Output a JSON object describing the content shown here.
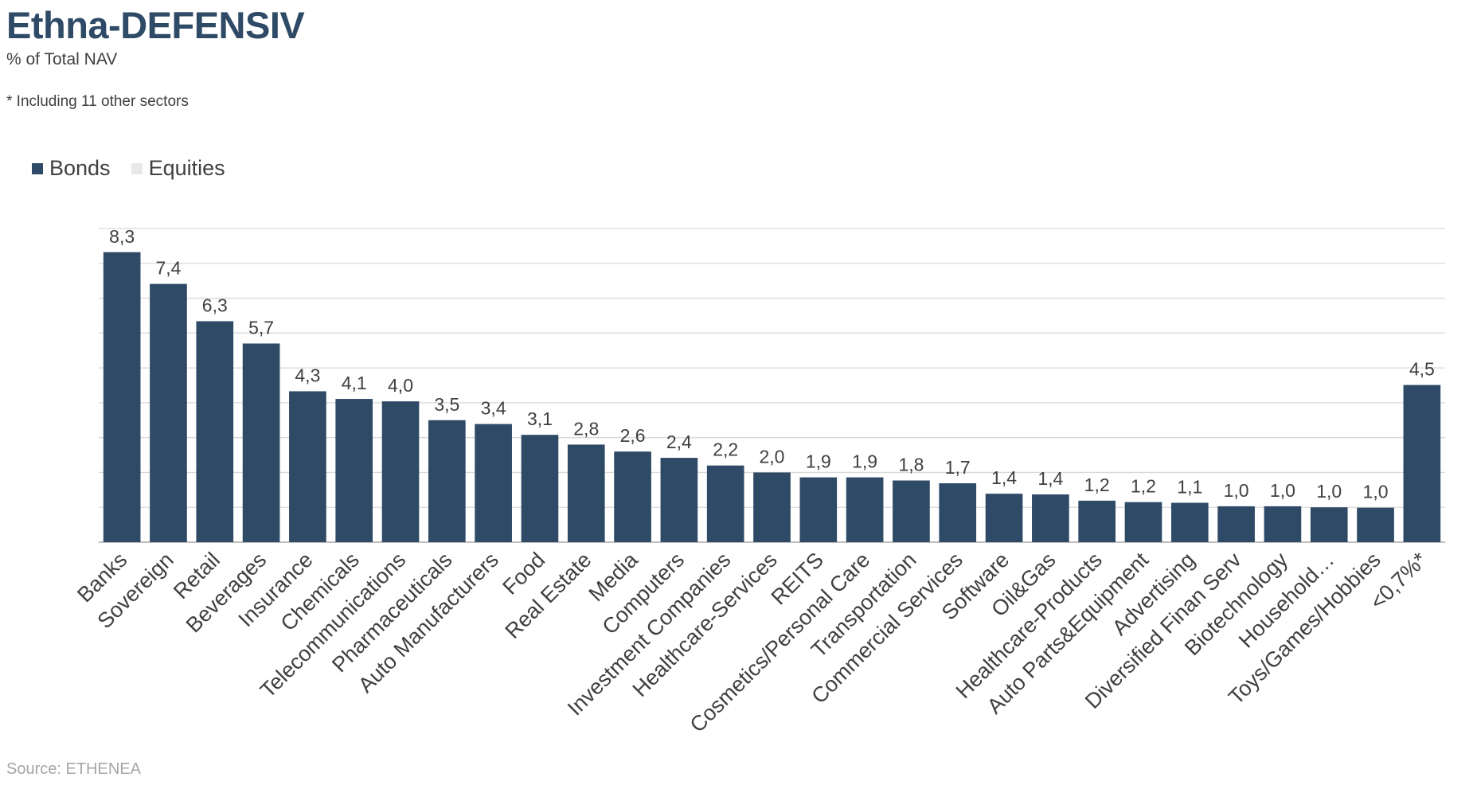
{
  "title": "Ethna-DEFENSIV",
  "subtitle": "% of Total NAV",
  "note": "* Including 11 other sectors",
  "source": "Source: ETHENEA",
  "colors": {
    "bonds": "#2e4a66",
    "equities": "#e8e8e8",
    "grid": "#d9d9d9",
    "title": "#2e4a66"
  },
  "legend": [
    {
      "name": "Bonds",
      "color": "#2e4a66"
    },
    {
      "name": "Equities",
      "color": "#e8e8e8"
    }
  ],
  "chart_data": {
    "type": "bar",
    "title": "Ethna-DEFENSIV",
    "subtitle": "% of Total NAV",
    "categories": [
      "Banks",
      "Sovereign",
      "Retail",
      "Beverages",
      "Insurance",
      "Chemicals",
      "Telecommunications",
      "Pharmaceuticals",
      "Auto Manufacturers",
      "Food",
      "Real Estate",
      "Media",
      "Computers",
      "Investment Companies",
      "Healthcare-Services",
      "REITS",
      "Cosmetics/Personal Care",
      "Transportation",
      "Commercial Services",
      "Software",
      "Oil&Gas",
      "Healthcare-Products",
      "Auto Parts&Equipment",
      "Advertising",
      "Diversified Finan Serv",
      "Biotechnology",
      "Household…",
      "Toys/Games/Hobbies",
      "<0,7%*"
    ],
    "series": [
      {
        "name": "Bonds",
        "values": [
          8.32,
          7.41,
          6.34,
          5.7,
          4.33,
          4.11,
          4.04,
          3.5,
          3.39,
          3.08,
          2.8,
          2.6,
          2.42,
          2.2,
          2.0,
          1.86,
          1.86,
          1.77,
          1.69,
          1.39,
          1.37,
          1.19,
          1.15,
          1.13,
          1.03,
          1.03,
          1.0,
          0.99,
          4.51
        ]
      },
      {
        "name": "Equities",
        "values": [
          0,
          0,
          0,
          0,
          0,
          0,
          0,
          0,
          0,
          0,
          0,
          0,
          0,
          0,
          0,
          0,
          0,
          0,
          0,
          0,
          0,
          0,
          0,
          0,
          0,
          0,
          0,
          0,
          0
        ]
      }
    ],
    "value_labels": [
      "8,3",
      "7,4",
      "6,3",
      "5,7",
      "4,3",
      "4,1",
      "4,0",
      "3,5",
      "3,4",
      "3,1",
      "2,8",
      "2,6",
      "2,4",
      "2,2",
      "2,0",
      "1,9",
      "1,9",
      "1,8",
      "1,7",
      "1,4",
      "1,4",
      "1,2",
      "1,2",
      "1,1",
      "1,0",
      "1,0",
      "1,0",
      "1,0",
      "4,5"
    ],
    "ylim": [
      0,
      9
    ],
    "grid": true,
    "y_ticks_shown": false,
    "legend_position": "top-left"
  }
}
